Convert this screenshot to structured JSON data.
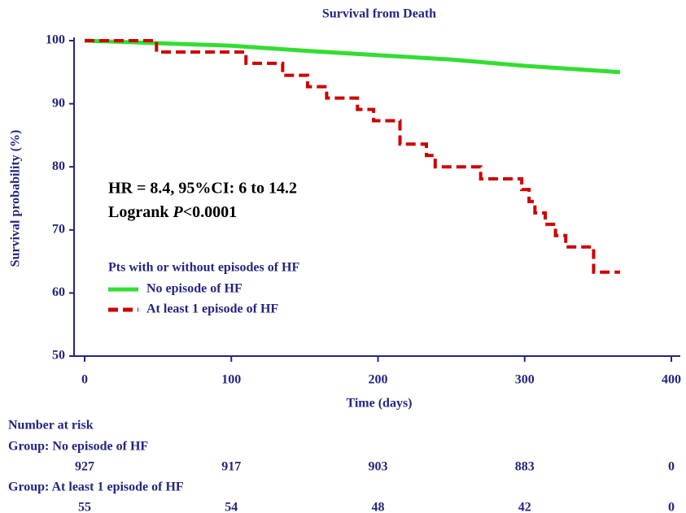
{
  "chart_data": {
    "type": "line",
    "title": "Survival from Death",
    "ylabel": "Survival probability (%)",
    "xlabel": "Time (days)",
    "xlim": [
      0,
      400
    ],
    "ylim": [
      50,
      100
    ],
    "xticks": [
      0,
      100,
      200,
      300,
      400
    ],
    "yticks": [
      50,
      60,
      70,
      80,
      90,
      100
    ],
    "annotation": {
      "hr": "HR = 8.4, 95%CI: 6 to 14.2",
      "logrank": "Logrank ",
      "p_symbol": "P",
      "p_value": "<0.0001"
    },
    "legend_title": "Pts with or without episodes of HF",
    "series": [
      {
        "name": "No episode of HF",
        "color": "#33dd33",
        "dash": false,
        "x": [
          0,
          50,
          100,
          150,
          200,
          250,
          300,
          365
        ],
        "values": [
          100,
          99.6,
          99.2,
          98.4,
          97.7,
          97.0,
          96.0,
          95.0
        ]
      },
      {
        "name": "At least 1 episode of HF",
        "color": "#cc0000",
        "dash": true,
        "x": [
          0,
          49,
          49,
          110,
          110,
          135,
          135,
          152,
          152,
          165,
          165,
          186,
          186,
          197,
          197,
          215,
          215,
          233,
          233,
          239,
          239,
          270,
          270,
          298,
          298,
          303,
          303,
          307,
          307,
          314,
          314,
          321,
          321,
          328,
          328,
          347,
          347,
          365
        ],
        "values": [
          100,
          100,
          98.2,
          98.2,
          96.4,
          96.4,
          94.5,
          94.5,
          92.7,
          92.7,
          90.9,
          90.9,
          89.1,
          89.1,
          87.3,
          87.3,
          83.6,
          83.6,
          81.8,
          81.8,
          80,
          80,
          78.1,
          78.1,
          76.4,
          76.4,
          74.5,
          74.5,
          72.7,
          72.7,
          70.9,
          70.9,
          69.1,
          69.1,
          67.3,
          67.3,
          63.3,
          63.3
        ]
      }
    ],
    "risk_table": {
      "title": "Number at risk",
      "groups": [
        {
          "name": "Group: No episode of HF",
          "counts": [
            927,
            917,
            903,
            883,
            0
          ]
        },
        {
          "name": "Group: At least 1 episode of HF",
          "counts": [
            55,
            54,
            48,
            42,
            0
          ]
        }
      ]
    }
  }
}
